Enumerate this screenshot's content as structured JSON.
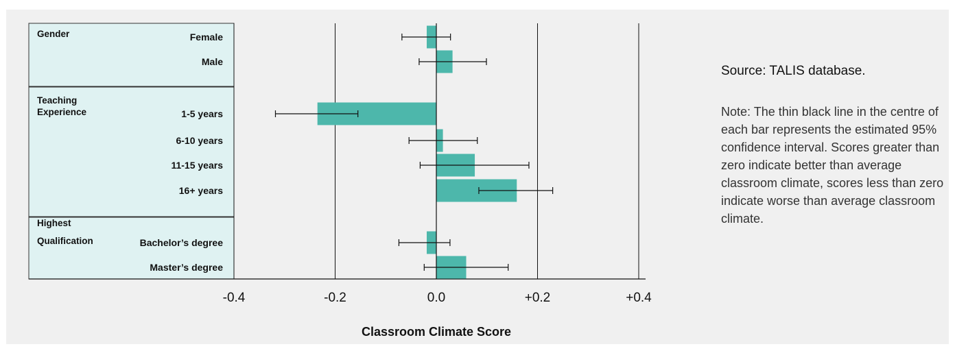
{
  "colors": {
    "bar": "#4db7ab",
    "label_panel": "#dff2f2",
    "background": "#f0f0f0",
    "error_bar": "#111111"
  },
  "chart_data": {
    "type": "bar",
    "orientation": "horizontal",
    "xlabel": "Classroom Climate Score",
    "xlim": [
      -0.4,
      0.4
    ],
    "xticks": [
      -0.4,
      -0.2,
      0.0,
      0.2,
      0.4
    ],
    "xtick_labels": [
      "-0.4",
      "-0.2",
      "0.0",
      "+0.2",
      "+0.4"
    ],
    "grid": "vertical lines at each tick",
    "groups": [
      {
        "name": "Gender",
        "categories": [
          {
            "label": "Female",
            "value": -0.019,
            "ci": [
              -0.068,
              0.028
            ]
          },
          {
            "label": "Male",
            "value": 0.032,
            "ci": [
              -0.034,
              0.099
            ]
          }
        ]
      },
      {
        "name": "Teaching Experience",
        "categories": [
          {
            "label": "1-5 years",
            "value": -0.235,
            "ci": [
              -0.318,
              -0.155
            ]
          },
          {
            "label": "6-10 years",
            "value": 0.013,
            "ci": [
              -0.054,
              0.081
            ]
          },
          {
            "label": "11-15 years",
            "value": 0.076,
            "ci": [
              -0.032,
              0.183
            ]
          },
          {
            "label": "16+ years",
            "value": 0.159,
            "ci": [
              0.084,
              0.23
            ]
          }
        ]
      },
      {
        "name": "Highest Qualification",
        "categories": [
          {
            "label": "Bachelor’s degree",
            "value": -0.019,
            "ci": [
              -0.074,
              0.027
            ]
          },
          {
            "label": "Master’s degree",
            "value": 0.059,
            "ci": [
              -0.024,
              0.142
            ]
          }
        ]
      }
    ]
  },
  "source": "Source: TALIS database.",
  "note": "Note: The thin black line in the centre of each bar represents the estimated 95% confidence interval. Scores greater than zero indicate better than average classroom climate, scores less than zero indicate worse than average classroom climate."
}
